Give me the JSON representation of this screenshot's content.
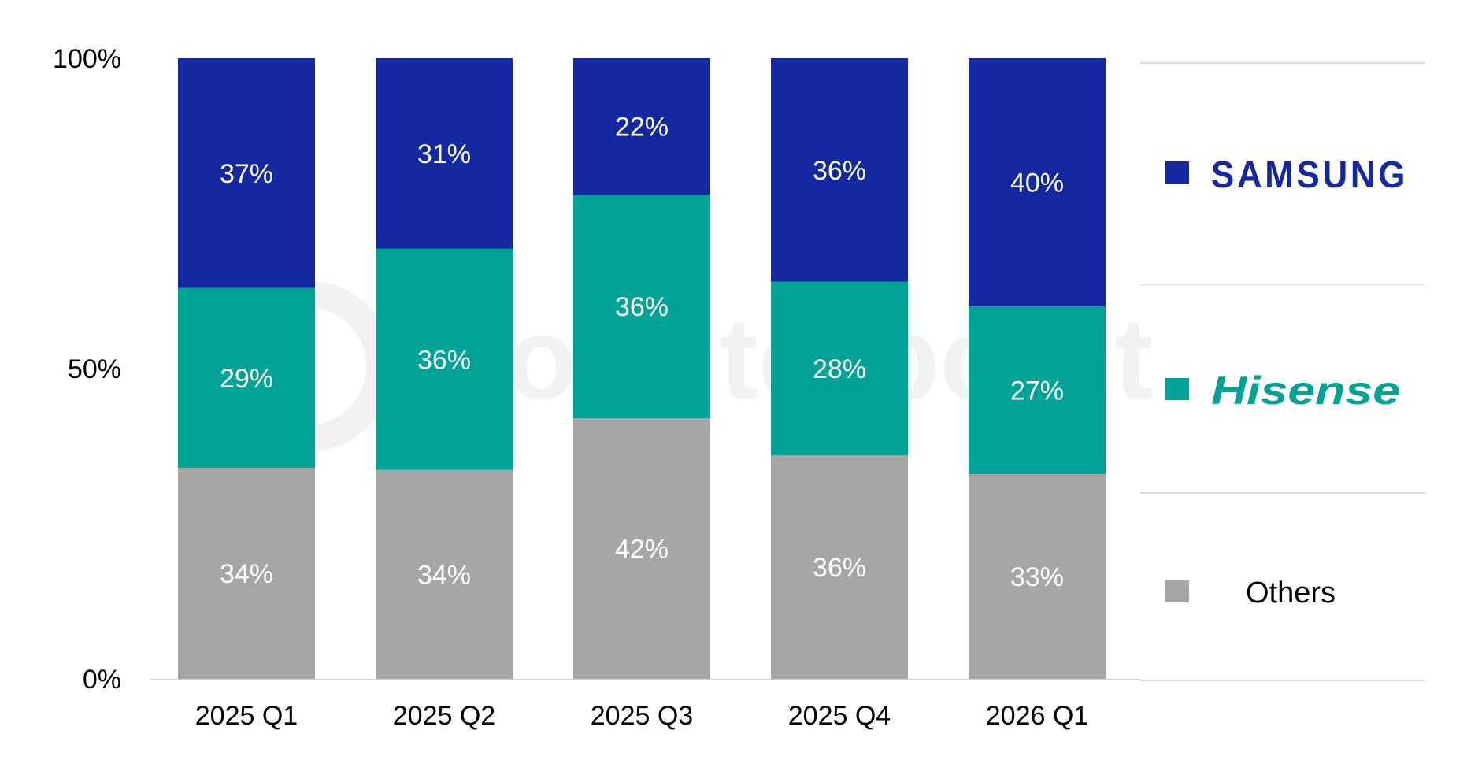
{
  "watermark": {
    "text": "counterpoint"
  },
  "chart_data": {
    "type": "bar",
    "stacked": true,
    "normalized": true,
    "categories": [
      "2025 Q1",
      "2025 Q2",
      "2025 Q3",
      "2025 Q4",
      "2026 Q1"
    ],
    "series": [
      {
        "name": "Others",
        "color": "#a6a6a6",
        "values": [
          34,
          34,
          42,
          36,
          33
        ],
        "labels": [
          "34%",
          "34%",
          "42%",
          "36%",
          "33%"
        ]
      },
      {
        "name": "Hisense",
        "color": "#00a396",
        "values": [
          29,
          36,
          36,
          28,
          27
        ],
        "labels": [
          "29%",
          "36%",
          "36%",
          "28%",
          "27%"
        ]
      },
      {
        "name": "SAMSUNG",
        "color": "#1428a0",
        "values": [
          37,
          31,
          22,
          36,
          40
        ],
        "labels": [
          "37%",
          "31%",
          "22%",
          "36%",
          "40%"
        ]
      }
    ],
    "ylim": [
      0,
      100
    ],
    "yticks": [
      0,
      50,
      100
    ],
    "ytick_labels": [
      "0%",
      "50%",
      "100%"
    ],
    "title": "",
    "xlabel": "",
    "ylabel": "",
    "grid": false,
    "legend": {
      "placement": "right",
      "order": [
        "SAMSUNG",
        "Hisense",
        "Others"
      ],
      "items": [
        {
          "label": "SAMSUNG",
          "style": "logo",
          "color": "#1428a0"
        },
        {
          "label": "Hisense",
          "style": "logo",
          "color": "#00a396"
        },
        {
          "label": "Others",
          "style": "plain",
          "color": "#a6a6a6"
        }
      ]
    }
  }
}
